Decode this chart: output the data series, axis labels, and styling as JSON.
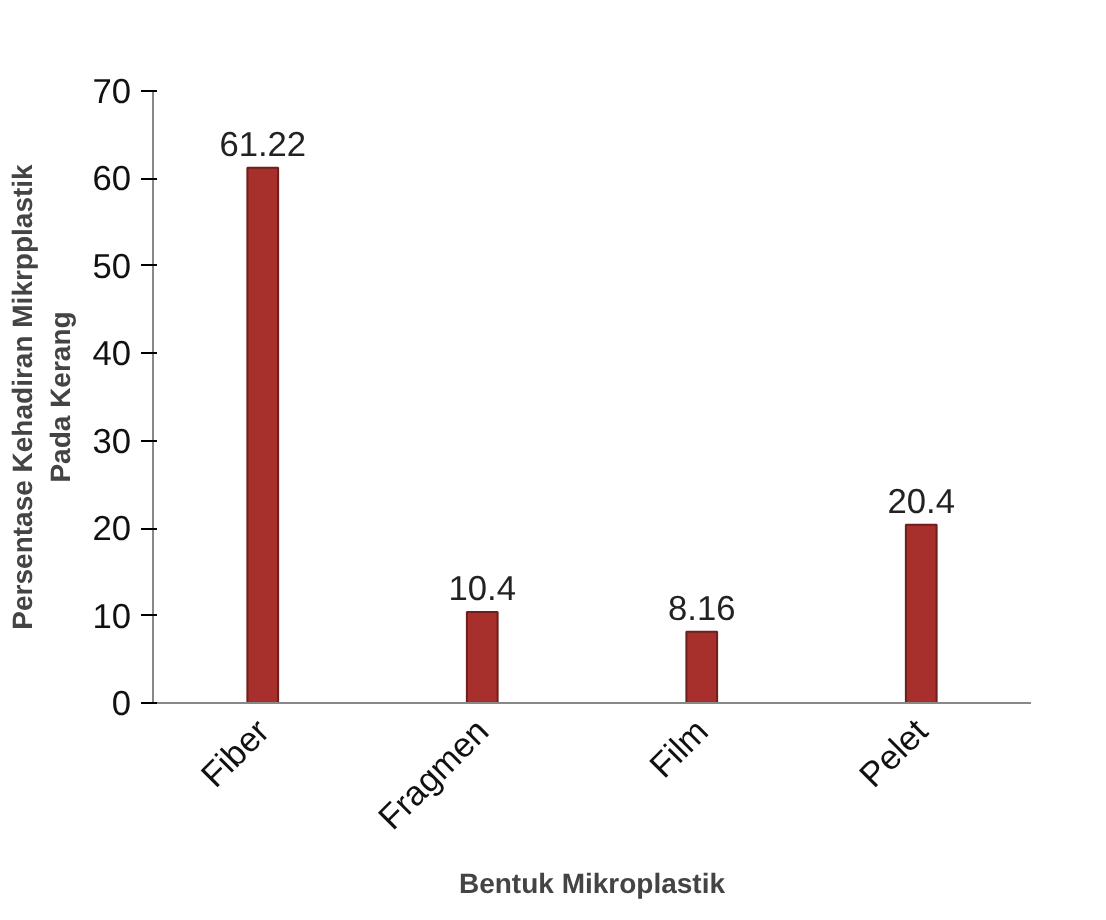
{
  "chart_data": {
    "type": "bar",
    "xlabel": "Bentuk Mikroplastik",
    "ylabel": "Persentase Kehadiran Mikrpplastik Pada Kerang",
    "categories": [
      "Fiber",
      "Fragmen",
      "Film",
      "Pelet"
    ],
    "values": [
      61.22,
      10.4,
      8.16,
      20.4
    ],
    "color": "#a8302c",
    "ylim": [
      0,
      70
    ],
    "yticks": [
      0,
      10,
      20,
      30,
      40,
      50,
      60,
      70
    ],
    "data_labels": true
  }
}
